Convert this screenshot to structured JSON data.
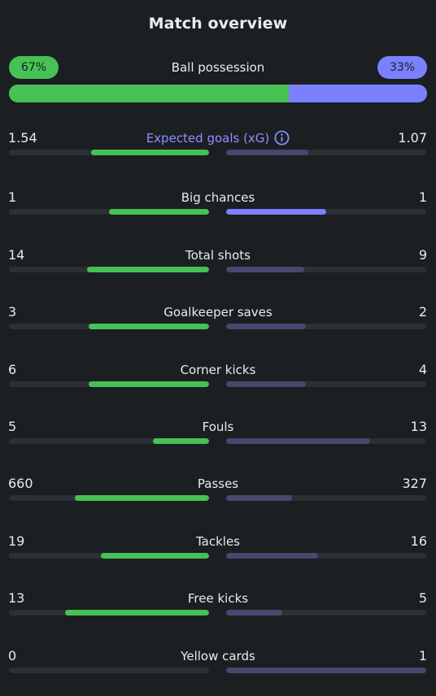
{
  "header": {
    "title": "Match overview"
  },
  "possession": {
    "label": "Ball possession",
    "home": "67%",
    "away": "33%",
    "home_fraction": 0.67,
    "away_fraction": 0.33
  },
  "colors": {
    "home": "#47c154",
    "away_highlight": "#7b80ff",
    "away_muted": "#45496e",
    "track": "#2b3034",
    "background": "#1b1f22",
    "accent_text": "#8b90ff"
  },
  "stats": [
    {
      "name": "Expected goals (xG)",
      "home": "1.54",
      "away": "1.07",
      "home_fraction": 0.59,
      "away_fraction": 0.41,
      "accent": true,
      "info_icon": "info-circle-icon"
    },
    {
      "name": "Big chances",
      "home": "1",
      "away": "1",
      "home_fraction": 0.5,
      "away_fraction": 0.5,
      "away_highlight": true
    },
    {
      "name": "Total shots",
      "home": "14",
      "away": "9",
      "home_fraction": 0.61,
      "away_fraction": 0.39
    },
    {
      "name": "Goalkeeper saves",
      "home": "3",
      "away": "2",
      "home_fraction": 0.6,
      "away_fraction": 0.4
    },
    {
      "name": "Corner kicks",
      "home": "6",
      "away": "4",
      "home_fraction": 0.6,
      "away_fraction": 0.4
    },
    {
      "name": "Fouls",
      "home": "5",
      "away": "13",
      "home_fraction": 0.28,
      "away_fraction": 0.72
    },
    {
      "name": "Passes",
      "home": "660",
      "away": "327",
      "home_fraction": 0.67,
      "away_fraction": 0.33
    },
    {
      "name": "Tackles",
      "home": "19",
      "away": "16",
      "home_fraction": 0.54,
      "away_fraction": 0.46
    },
    {
      "name": "Free kicks",
      "home": "13",
      "away": "5",
      "home_fraction": 0.72,
      "away_fraction": 0.28
    },
    {
      "name": "Yellow cards",
      "home": "0",
      "away": "1",
      "home_fraction": 0.0,
      "away_fraction": 1.0
    }
  ]
}
